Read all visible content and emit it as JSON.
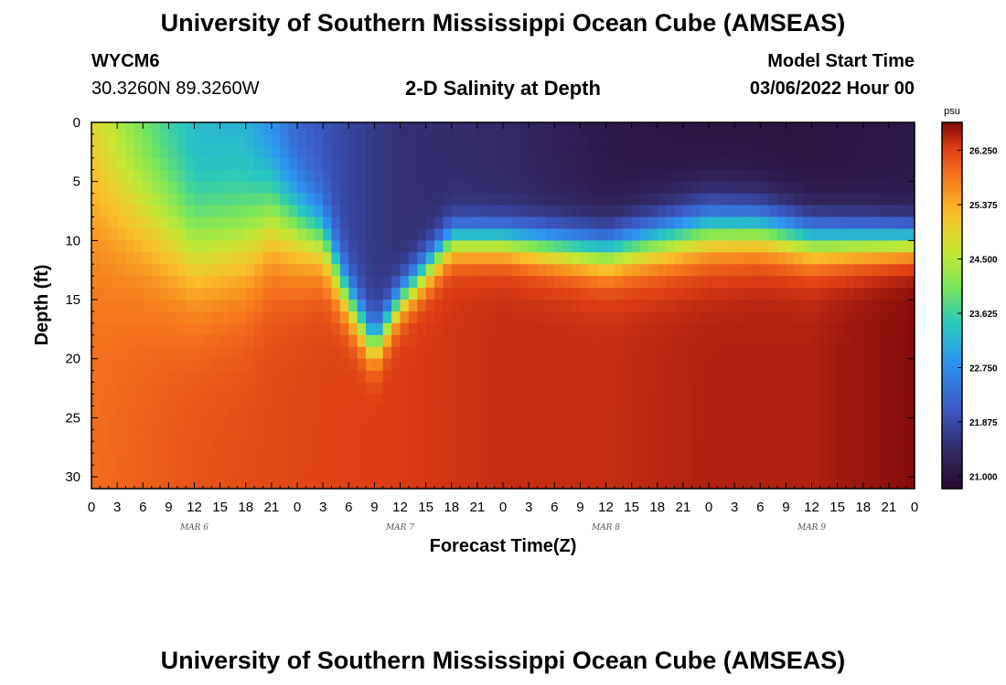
{
  "header": {
    "title": "University of Southern Mississippi Ocean Cube (AMSEAS)",
    "station_id": "WYCM6",
    "coordinates": "30.3260N  89.3260W",
    "subtitle": "2-D Salinity at Depth",
    "model_start_label": "Model Start Time",
    "model_start_value": "03/06/2022 Hour 00",
    "footer_title": "University of Southern Mississippi Ocean Cube (AMSEAS)"
  },
  "chart_data": {
    "type": "heatmap",
    "title": "2-D Salinity at Depth",
    "xlabel": "Forecast Time(Z)",
    "ylabel": "Depth (ft)",
    "x_hours": [
      0,
      96
    ],
    "x_ticks": [
      "0",
      "3",
      "6",
      "9",
      "12",
      "15",
      "18",
      "21",
      "0",
      "3",
      "6",
      "9",
      "12",
      "15",
      "18",
      "21",
      "0",
      "3",
      "6",
      "9",
      "12",
      "15",
      "18",
      "21",
      "0",
      "3",
      "6",
      "9",
      "12",
      "15",
      "18",
      "21",
      "0"
    ],
    "day_labels": [
      "MAR 6",
      "MAR 7",
      "MAR 8",
      "MAR 9"
    ],
    "y_ticks": [
      "0",
      "5",
      "10",
      "15",
      "20",
      "25",
      "30"
    ],
    "ylim": [
      0,
      31
    ],
    "colorbar": {
      "unit": "psu",
      "ticks": [
        "26.250",
        "25.375",
        "24.500",
        "23.625",
        "22.750",
        "21.875",
        "21.000"
      ],
      "range": [
        20.8,
        26.7
      ]
    },
    "interface_depth_ft": [
      [
        0,
        6
      ],
      [
        6,
        8
      ],
      [
        12,
        11
      ],
      [
        18,
        10
      ],
      [
        21,
        8
      ],
      [
        27,
        10
      ],
      [
        30,
        15
      ],
      [
        33,
        19
      ],
      [
        36,
        15
      ],
      [
        42,
        10
      ],
      [
        48,
        10
      ],
      [
        60,
        11
      ],
      [
        66,
        10
      ],
      [
        72,
        9
      ],
      [
        78,
        9
      ],
      [
        84,
        10
      ],
      [
        90,
        10
      ],
      [
        96,
        10
      ]
    ],
    "surface_salinity_psu": [
      [
        0,
        24.7
      ],
      [
        6,
        23.8
      ],
      [
        12,
        23.2
      ],
      [
        18,
        23.1
      ],
      [
        24,
        22.2
      ],
      [
        30,
        21.8
      ],
      [
        36,
        21.5
      ],
      [
        48,
        21.4
      ],
      [
        60,
        21.1
      ],
      [
        72,
        21.0
      ],
      [
        84,
        21.0
      ],
      [
        96,
        21.1
      ]
    ],
    "bottom_salinity_psu": [
      [
        0,
        25.9
      ],
      [
        12,
        26.1
      ],
      [
        24,
        26.2
      ],
      [
        36,
        26.3
      ],
      [
        48,
        26.4
      ],
      [
        60,
        26.4
      ],
      [
        72,
        26.5
      ],
      [
        84,
        26.5
      ],
      [
        90,
        26.6
      ],
      [
        96,
        26.7
      ]
    ],
    "gradient_width_ft": [
      [
        0,
        16
      ],
      [
        12,
        12
      ],
      [
        18,
        12
      ],
      [
        24,
        9
      ],
      [
        30,
        5
      ],
      [
        36,
        4
      ],
      [
        48,
        4
      ],
      [
        60,
        5
      ],
      [
        72,
        6
      ],
      [
        84,
        5
      ],
      [
        96,
        4
      ]
    ]
  }
}
